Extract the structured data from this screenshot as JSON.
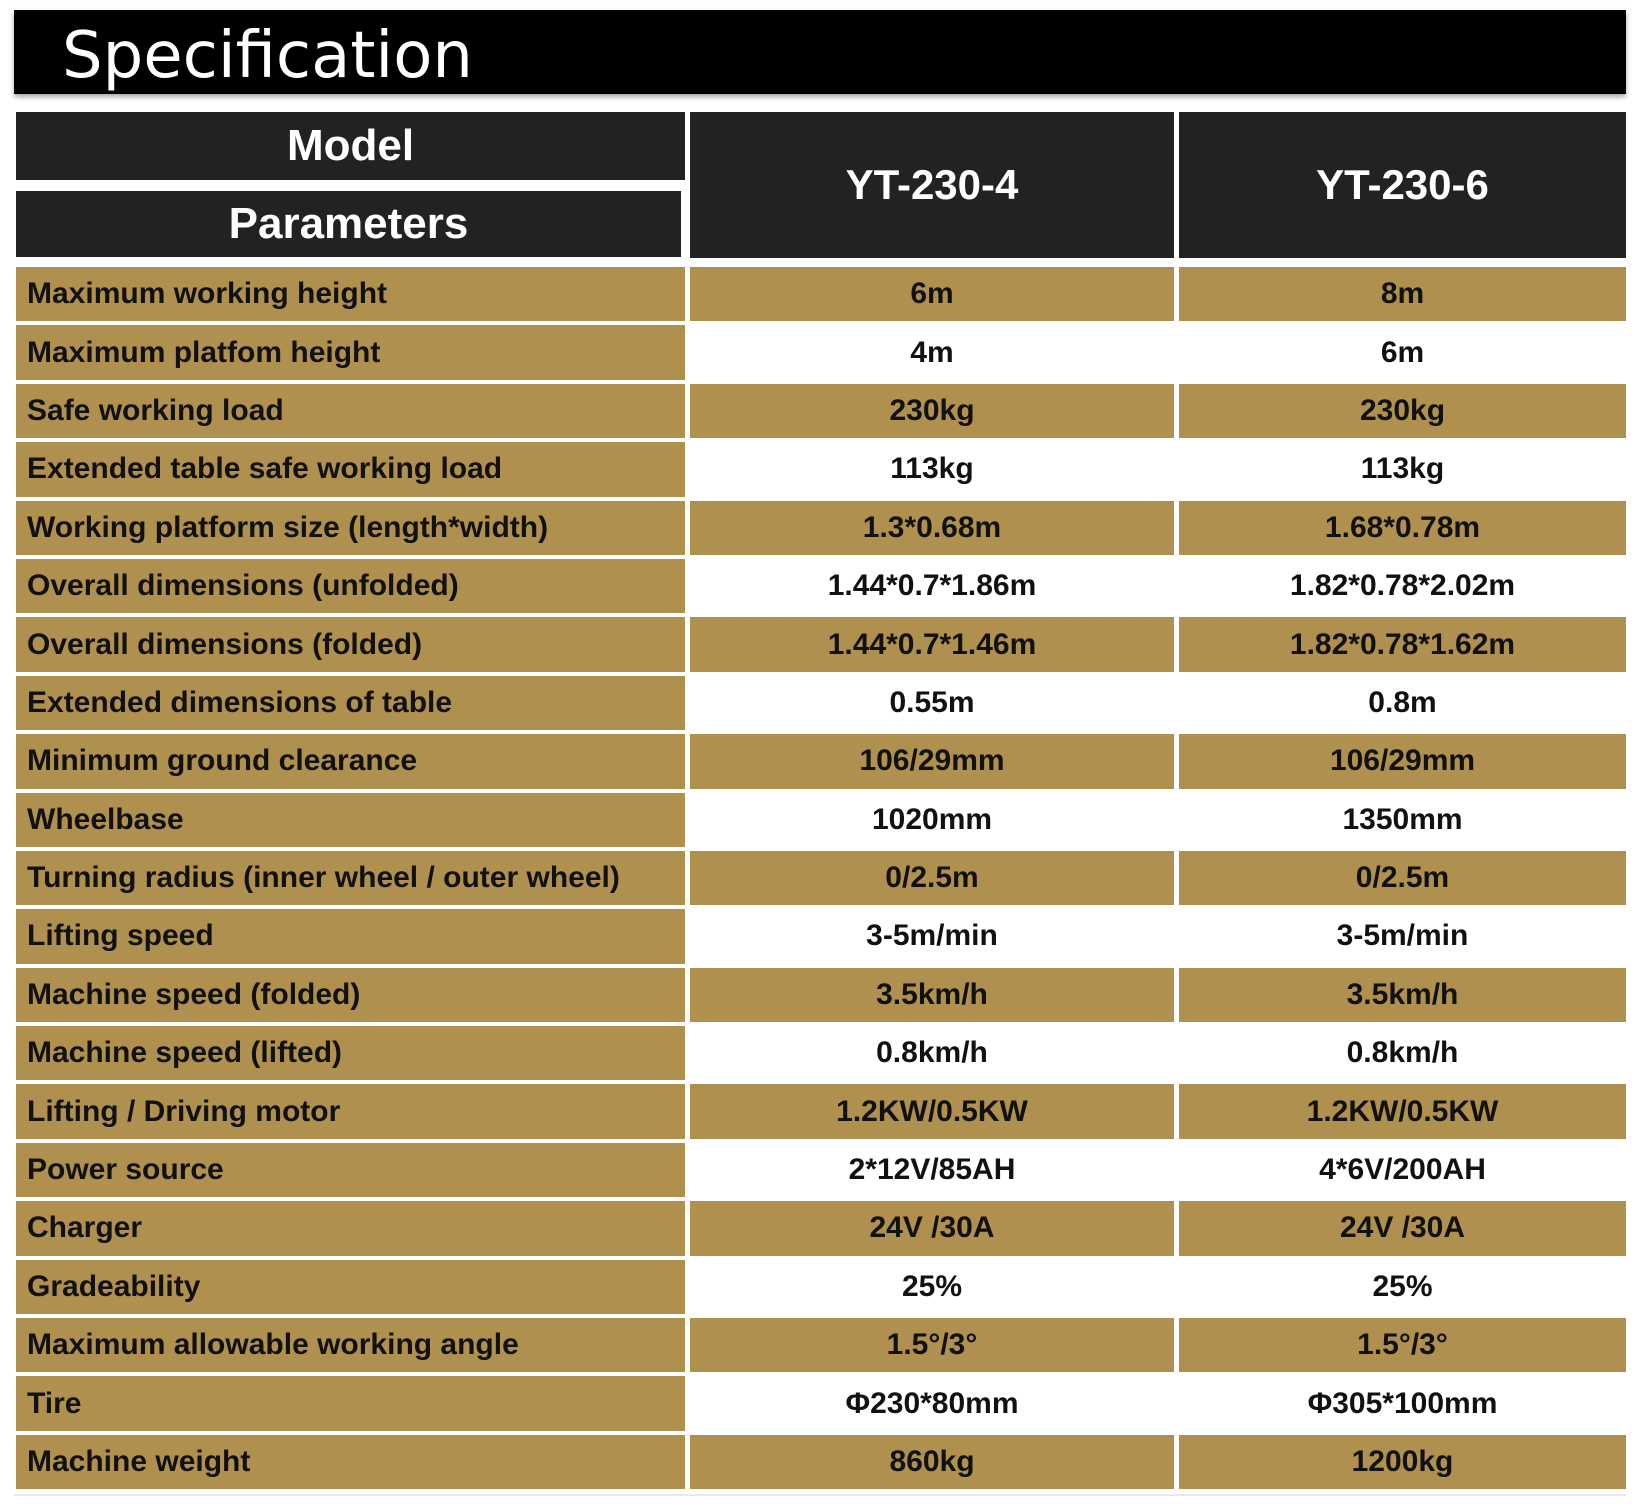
{
  "banner": {
    "title": "Specification"
  },
  "table": {
    "header": {
      "model_label": "Model",
      "parameters_label": "Parameters",
      "models": [
        "YT-230-4",
        "YT-230-6"
      ]
    },
    "rows": [
      {
        "label": "Maximum working height",
        "v1": "6m",
        "v2": "8m"
      },
      {
        "label": "Maximum platfom height",
        "v1": "4m",
        "v2": "6m"
      },
      {
        "label": "Safe working load",
        "v1": "230kg",
        "v2": "230kg"
      },
      {
        "label": "Extended table safe working load",
        "v1": "113kg",
        "v2": "113kg"
      },
      {
        "label": "Working platform size (length*width)",
        "v1": "1.3*0.68m",
        "v2": "1.68*0.78m"
      },
      {
        "label": "Overall dimensions (unfolded)",
        "v1": "1.44*0.7*1.86m",
        "v2": "1.82*0.78*2.02m"
      },
      {
        "label": "Overall dimensions (folded)",
        "v1": "1.44*0.7*1.46m",
        "v2": "1.82*0.78*1.62m"
      },
      {
        "label": "Extended dimensions of table",
        "v1": "0.55m",
        "v2": "0.8m"
      },
      {
        "label": "Minimum ground clearance",
        "v1": "106/29mm",
        "v2": "106/29mm"
      },
      {
        "label": "Wheelbase",
        "v1": "1020mm",
        "v2": "1350mm"
      },
      {
        "label": "Turning radius (inner wheel / outer wheel)",
        "v1": "0/2.5m",
        "v2": "0/2.5m"
      },
      {
        "label": "Lifting speed",
        "v1": "3-5m/min",
        "v2": "3-5m/min"
      },
      {
        "label": "Machine speed (folded)",
        "v1": "3.5km/h",
        "v2": "3.5km/h"
      },
      {
        "label": "Machine speed (lifted)",
        "v1": "0.8km/h",
        "v2": "0.8km/h"
      },
      {
        "label": "Lifting / Driving motor",
        "v1": "1.2KW/0.5KW",
        "v2": "1.2KW/0.5KW"
      },
      {
        "label": "Power source",
        "v1": "2*12V/85AH",
        "v2": "4*6V/200AH"
      },
      {
        "label": "Charger",
        "v1": "24V /30A",
        "v2": "24V /30A"
      },
      {
        "label": "Gradeability",
        "v1": "25%",
        "v2": "25%"
      },
      {
        "label": "Maximum allowable working angle",
        "v1": "1.5°/3°",
        "v2": "1.5°/3°"
      },
      {
        "label": "Tire",
        "v1": "Φ230*80mm",
        "v2": "Φ305*100mm"
      },
      {
        "label": "Machine weight",
        "v1": "860kg",
        "v2": "1200kg"
      }
    ]
  },
  "colors": {
    "gold": "#b0904f",
    "header_dark": "#222222",
    "banner_black": "#000000"
  }
}
